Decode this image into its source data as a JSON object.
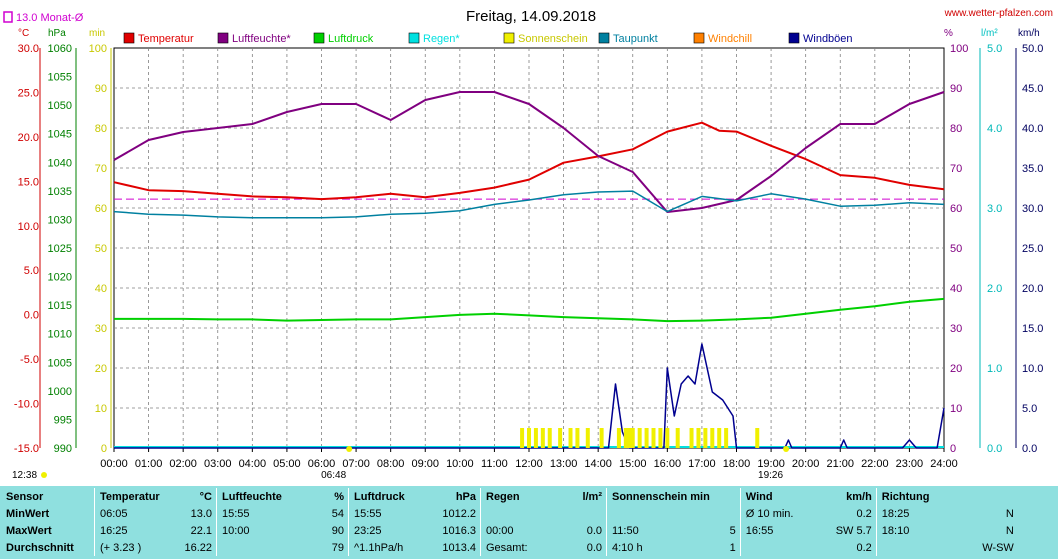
{
  "header": {
    "title": "Freitag, 14.09.2018",
    "site": "www.wetter-pfalzen.com",
    "month_avg": "13.0 Monat-Ø"
  },
  "units": {
    "temp": "°C",
    "hpa": "hPa",
    "min": "min",
    "pct": "%",
    "lm2": "l/m²",
    "kmh": "km/h"
  },
  "colors": {
    "temperature": "#e00000",
    "humidity": "#800080",
    "pressure": "#00d000",
    "rain": "#00e0e0",
    "sunshine": "#f0f000",
    "dewpoint": "#0080a0",
    "windchill": "#ff8000",
    "gust": "#000090",
    "month_avg": "#d000d0"
  },
  "markers": {
    "sunrise": "06:48",
    "sunset": "19:26",
    "now": "12:38"
  },
  "chart_data": {
    "type": "line",
    "title": "Freitag, 14.09.2018",
    "legend": [
      "Temperatur",
      "Luftfeuchte*",
      "Luftdruck",
      "Regen*",
      "Sonnenschein",
      "Taupunkt",
      "Windchill",
      "Windböen"
    ],
    "legend_position": "top",
    "grid": true,
    "x_ticks": [
      "00:00",
      "01:00",
      "02:00",
      "03:00",
      "04:00",
      "05:00",
      "06:00",
      "07:00",
      "08:00",
      "09:00",
      "10:00",
      "11:00",
      "12:00",
      "13:00",
      "14:00",
      "15:00",
      "16:00",
      "17:00",
      "18:00",
      "19:00",
      "20:00",
      "21:00",
      "22:00",
      "23:00",
      "24:00"
    ],
    "axes": {
      "temp_c": {
        "range": [
          -15,
          30
        ],
        "ticks": [
          "30.0",
          "25.0",
          "20.0",
          "15.0",
          "10.0",
          "5.0",
          "0.0",
          "-5.0",
          "-10.0",
          "-15.0"
        ]
      },
      "pressure_hpa": {
        "range": [
          990,
          1060
        ],
        "ticks": [
          "1060",
          "1055",
          "1050",
          "1045",
          "1040",
          "1035",
          "1030",
          "1025",
          "1020",
          "1015",
          "1010",
          "1005",
          "1000",
          "995",
          "990"
        ]
      },
      "sunshine_min": {
        "range": [
          0,
          100
        ],
        "ticks": [
          "100",
          "90",
          "80",
          "70",
          "60",
          "50",
          "40",
          "30",
          "20",
          "10",
          "0"
        ]
      },
      "humidity_pct": {
        "range": [
          0,
          100
        ],
        "ticks": [
          "100",
          "90",
          "80",
          "70",
          "60",
          "50",
          "40",
          "30",
          "20",
          "10",
          "0"
        ]
      },
      "rain_lm2": {
        "range": [
          0,
          5
        ],
        "ticks": [
          "5.0",
          "4.0",
          "3.0",
          "2.0",
          "1.0",
          "0.0"
        ]
      },
      "wind_kmh": {
        "range": [
          0,
          50
        ],
        "ticks": [
          "50.0",
          "45.0",
          "40.0",
          "35.0",
          "30.0",
          "25.0",
          "20.0",
          "15.0",
          "10.0",
          "5.0",
          "0.0"
        ]
      }
    },
    "month_avg_temp": 13.0,
    "series": [
      {
        "name": "Temperatur",
        "axis": "temp_c",
        "points": [
          [
            0,
            14.9
          ],
          [
            1,
            14.0
          ],
          [
            2,
            13.9
          ],
          [
            3,
            13.6
          ],
          [
            4,
            13.3
          ],
          [
            5,
            13.2
          ],
          [
            6,
            13.0
          ],
          [
            7,
            13.2
          ],
          [
            8,
            13.6
          ],
          [
            9,
            13.2
          ],
          [
            10,
            13.7
          ],
          [
            11,
            14.3
          ],
          [
            12,
            15.2
          ],
          [
            13,
            17.1
          ],
          [
            14,
            17.8
          ],
          [
            15,
            18.6
          ],
          [
            16,
            20.6
          ],
          [
            17,
            21.6
          ],
          [
            17.5,
            20.7
          ],
          [
            18,
            20.6
          ],
          [
            19,
            19.0
          ],
          [
            20,
            17.5
          ],
          [
            21,
            15.7
          ],
          [
            22,
            15.4
          ],
          [
            23,
            14.6
          ],
          [
            24,
            14.1
          ]
        ]
      },
      {
        "name": "Luftfeuchte*",
        "axis": "humidity_pct",
        "points": [
          [
            0,
            72
          ],
          [
            1,
            77
          ],
          [
            2,
            79
          ],
          [
            3,
            80
          ],
          [
            4,
            81
          ],
          [
            5,
            84
          ],
          [
            6,
            86
          ],
          [
            7,
            86
          ],
          [
            8,
            82
          ],
          [
            9,
            87
          ],
          [
            10,
            89
          ],
          [
            11,
            89
          ],
          [
            12,
            86
          ],
          [
            13,
            80
          ],
          [
            14,
            73
          ],
          [
            15,
            69
          ],
          [
            16,
            59
          ],
          [
            17,
            60
          ],
          [
            18,
            62
          ],
          [
            19,
            68
          ],
          [
            20,
            75
          ],
          [
            21,
            81
          ],
          [
            22,
            81
          ],
          [
            23,
            86
          ],
          [
            24,
            89
          ]
        ]
      },
      {
        "name": "Luftdruck",
        "axis": "pressure_hpa",
        "points": [
          [
            0,
            1012.6
          ],
          [
            1,
            1012.6
          ],
          [
            2,
            1012.6
          ],
          [
            3,
            1012.5
          ],
          [
            4,
            1012.5
          ],
          [
            5,
            1012.3
          ],
          [
            6,
            1012.4
          ],
          [
            7,
            1012.5
          ],
          [
            8,
            1012.5
          ],
          [
            9,
            1012.9
          ],
          [
            10,
            1013.3
          ],
          [
            11,
            1013.5
          ],
          [
            12,
            1013.2
          ],
          [
            13,
            1012.9
          ],
          [
            14,
            1012.7
          ],
          [
            15,
            1012.5
          ],
          [
            16,
            1012.2
          ],
          [
            17,
            1012.3
          ],
          [
            18,
            1012.5
          ],
          [
            19,
            1012.8
          ],
          [
            20,
            1013.5
          ],
          [
            21,
            1014.2
          ],
          [
            22,
            1014.8
          ],
          [
            23,
            1015.6
          ],
          [
            24,
            1016.1
          ]
        ]
      },
      {
        "name": "Taupunkt",
        "axis": "temp_c",
        "points": [
          [
            0,
            11.6
          ],
          [
            1,
            11.3
          ],
          [
            2,
            11.2
          ],
          [
            3,
            11.0
          ],
          [
            4,
            10.9
          ],
          [
            5,
            10.9
          ],
          [
            6,
            10.9
          ],
          [
            7,
            11.0
          ],
          [
            8,
            11.3
          ],
          [
            9,
            11.4
          ],
          [
            10,
            11.7
          ],
          [
            11,
            12.4
          ],
          [
            12,
            12.9
          ],
          [
            13,
            13.5
          ],
          [
            14,
            13.8
          ],
          [
            15,
            13.9
          ],
          [
            16,
            11.6
          ],
          [
            17,
            13.3
          ],
          [
            18,
            12.8
          ],
          [
            19,
            13.6
          ],
          [
            20,
            13.0
          ],
          [
            21,
            12.2
          ],
          [
            22,
            12.3
          ],
          [
            23,
            12.6
          ],
          [
            24,
            12.4
          ]
        ]
      },
      {
        "name": "Windböen",
        "axis": "wind_kmh",
        "points": [
          [
            0,
            0
          ],
          [
            14.3,
            0
          ],
          [
            14.5,
            8
          ],
          [
            14.7,
            2
          ],
          [
            14.9,
            0
          ],
          [
            15.9,
            0
          ],
          [
            16.0,
            10
          ],
          [
            16.2,
            4
          ],
          [
            16.4,
            8
          ],
          [
            16.6,
            9
          ],
          [
            16.8,
            8
          ],
          [
            17.0,
            13
          ],
          [
            17.3,
            7
          ],
          [
            17.6,
            6
          ],
          [
            17.9,
            4
          ],
          [
            18.0,
            0
          ],
          [
            19.4,
            0
          ],
          [
            19.5,
            1
          ],
          [
            19.6,
            0
          ],
          [
            21.0,
            0
          ],
          [
            21.1,
            1
          ],
          [
            21.2,
            0
          ],
          [
            22.8,
            0
          ],
          [
            23.0,
            1
          ],
          [
            23.2,
            0
          ],
          [
            23.8,
            0
          ],
          [
            24,
            5
          ]
        ]
      },
      {
        "name": "Sonnenschein",
        "axis": "sunshine_min",
        "type": "bar",
        "points": [
          [
            11.8,
            5
          ],
          [
            12.0,
            5
          ],
          [
            12.2,
            5
          ],
          [
            12.4,
            5
          ],
          [
            12.6,
            5
          ],
          [
            12.9,
            5
          ],
          [
            13.2,
            5
          ],
          [
            13.4,
            5
          ],
          [
            13.7,
            5
          ],
          [
            14.1,
            5
          ],
          [
            14.6,
            5
          ],
          [
            14.8,
            5
          ],
          [
            14.9,
            5
          ],
          [
            15.0,
            5
          ],
          [
            15.2,
            5
          ],
          [
            15.4,
            5
          ],
          [
            15.6,
            5
          ],
          [
            15.8,
            5
          ],
          [
            16.0,
            5
          ],
          [
            16.3,
            5
          ],
          [
            16.7,
            5
          ],
          [
            16.9,
            5
          ],
          [
            17.1,
            5
          ],
          [
            17.3,
            5
          ],
          [
            17.5,
            5
          ],
          [
            17.7,
            5
          ],
          [
            18.6,
            5
          ]
        ]
      }
    ]
  },
  "stats": {
    "headers": [
      "Sensor",
      "Temperatur",
      "°C",
      "Luftfeuchte",
      "%",
      "Luftdruck",
      "hPa",
      "Regen",
      "l/m²",
      "Sonnenschein min",
      "",
      "Wind",
      "km/h",
      "Richtung",
      ""
    ],
    "rows": [
      [
        "MinWert",
        "06:05",
        "13.0",
        "15:55",
        "54",
        "15:55",
        "1012.2",
        "",
        "",
        "",
        "",
        "Ø 10 min.",
        "0.2",
        "18:25",
        "N"
      ],
      [
        "MaxWert",
        "16:25",
        "22.1",
        "10:00",
        "90",
        "23:25",
        "1016.3",
        "00:00",
        "0.0",
        "11:50",
        "5",
        "16:55",
        "SW 5.7",
        "18:10",
        "N"
      ],
      [
        "Durchschnitt",
        "(+ 3.23 )",
        "16.22",
        "",
        "79",
        "^1.1hPa/h",
        "1013.4",
        "Gesamt:",
        "0.0",
        "4:10 h",
        "1",
        "",
        "0.2",
        "",
        "W-SW"
      ]
    ]
  }
}
